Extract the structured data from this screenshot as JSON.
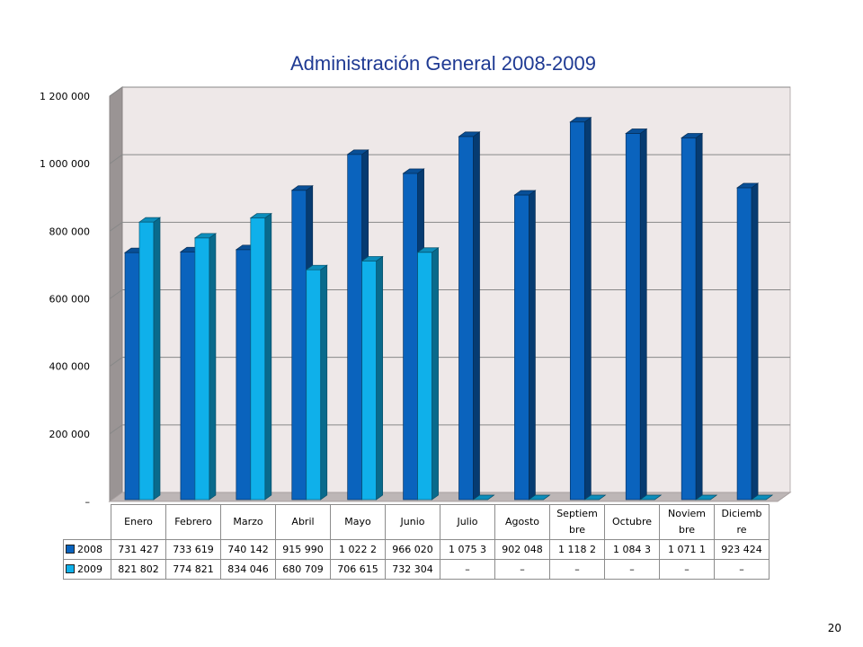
{
  "chart_data": {
    "type": "bar",
    "title": "Administración General 2008-2009",
    "xlabel": "",
    "ylabel": "",
    "ylim": [
      0,
      1200000
    ],
    "y_ticks": [
      "–",
      "200 000",
      "400 000",
      "600 000",
      "800 000",
      "1 000 000",
      "1 200 000"
    ],
    "grid": true,
    "legend": "in-table",
    "categories": [
      "Enero",
      "Febrero",
      "Marzo",
      "Abril",
      "Mayo",
      "Junio",
      "Julio",
      "Agosto",
      "Septiembre",
      "Octubre",
      "Noviembre",
      "Diciembre"
    ],
    "category_labels": [
      "Enero",
      "Febrero",
      "Marzo",
      "Abril",
      "Mayo",
      "Junio",
      "Julio",
      "Agosto",
      "Septiem bre",
      "Octubre",
      "Noviem bre",
      "Diciemb re"
    ],
    "series": [
      {
        "name": "2008",
        "color": "#0a63bd",
        "values": [
          731427,
          733619,
          740142,
          915990,
          1022200,
          966020,
          1075300,
          902048,
          1118200,
          1084300,
          1071100,
          923424
        ],
        "display": [
          "731 427",
          "733 619",
          "740 142",
          "915 990",
          "1 022 2",
          "966 020",
          "1 075 3",
          "902 048",
          "1 118 2",
          "1 084 3",
          "1 071 1",
          "923 424"
        ]
      },
      {
        "name": "2009",
        "color": "#0fb0ea",
        "values": [
          821802,
          774821,
          834046,
          680709,
          706615,
          732304,
          0,
          0,
          0,
          0,
          0,
          0
        ],
        "display": [
          "821 802",
          "774 821",
          "834 046",
          "680 709",
          "706 615",
          "732 304",
          "–",
          "–",
          "–",
          "–",
          "–",
          "–"
        ]
      }
    ]
  },
  "page_number": "20"
}
